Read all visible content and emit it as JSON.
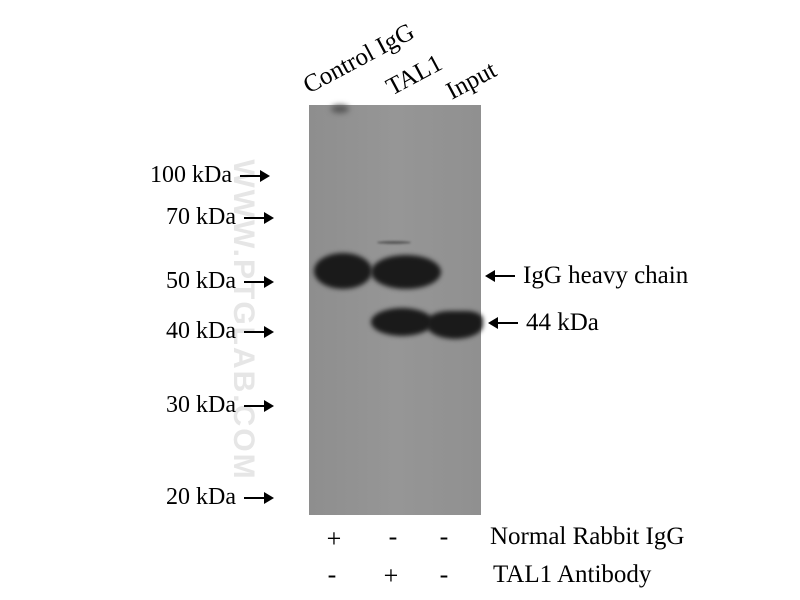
{
  "lanes": [
    "Control IgG",
    "TAL1",
    "Input"
  ],
  "markers": [
    "100 kDa",
    "70 kDa",
    "50 kDa",
    "40 kDa",
    "30 kDa",
    "20 kDa"
  ],
  "annotations": {
    "heavy_chain": "IgG heavy chain",
    "target": "44 kDa"
  },
  "conditions": [
    {
      "label": "Normal Rabbit IgG",
      "signs": [
        "+",
        "-",
        "-"
      ]
    },
    {
      "label": "TAL1 Antibody",
      "signs": [
        "-",
        "+",
        "-"
      ]
    }
  ],
  "watermark": "WWW.PTGLAB.COM",
  "colors": {
    "membrane": "#939393",
    "band": "#1a1a1a"
  }
}
